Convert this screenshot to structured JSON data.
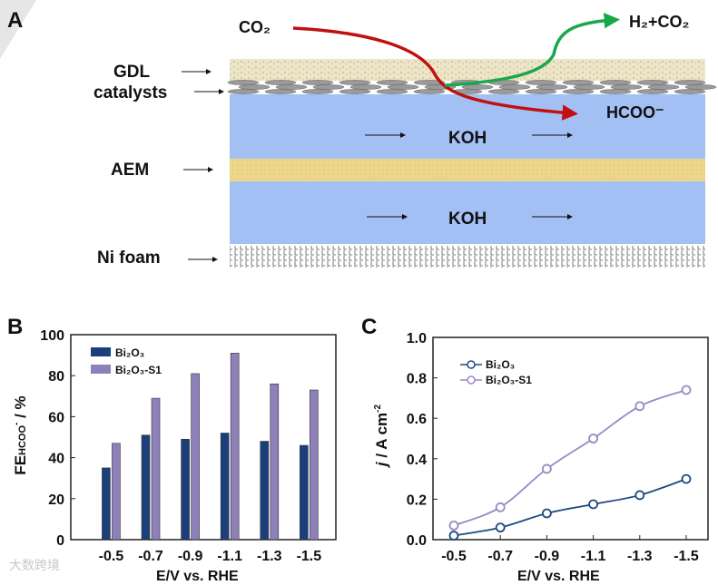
{
  "panel_a": {
    "letter": "A",
    "labels": {
      "gdl": "GDL",
      "catalysts": "catalysts",
      "aem": "AEM",
      "ni_foam": "Ni foam"
    },
    "koh_top": "KOH",
    "koh_bottom": "KOH",
    "co2_in": "CO₂",
    "h2_co2_out": "H₂+CO₂",
    "hcoo_out": "HCOO⁻",
    "colors": {
      "koh": "#a3c0f5",
      "aem": "#ecd68a",
      "gdl": "#e9e2c4",
      "co2_arrow": "#c01010",
      "h2_arrow": "#18a84a"
    }
  },
  "watermark": "大数跨境",
  "chart_data": [
    {
      "panel": "B",
      "type": "bar",
      "title": "",
      "xlabel": "E/V vs. RHE",
      "ylabel": "FE_HCOO⁻ / %",
      "ylabel_main": "FE",
      "ylabel_sub": "HCOO",
      "ylabel_sup": "-",
      "ylabel_tail": " / %",
      "categories": [
        "-0.5",
        "-0.7",
        "-0.9",
        "-1.1",
        "-1.3",
        "-1.5"
      ],
      "ylim": [
        0,
        100
      ],
      "yticks": [
        "0",
        "20",
        "40",
        "60",
        "80",
        "100"
      ],
      "legend_position": "top-left",
      "series": [
        {
          "name": "Bi₂O₃",
          "color": "#1a3f7a",
          "values": [
            35,
            51,
            49,
            52,
            48,
            46
          ]
        },
        {
          "name": "Bi₂O₃-S1",
          "color": "#8e80b8",
          "values": [
            47,
            69,
            81,
            91,
            76,
            73
          ]
        }
      ]
    },
    {
      "panel": "C",
      "type": "line",
      "title": "",
      "xlabel": "E/V vs. RHE",
      "ylabel_main": "j",
      "ylabel_tail": " / A cm",
      "ylabel_sup": "-2",
      "categories": [
        "-0.5",
        "-0.7",
        "-0.9",
        "-1.1",
        "-1.3",
        "-1.5"
      ],
      "ylim": [
        0,
        1.0
      ],
      "yticks": [
        "0.0",
        "0.2",
        "0.4",
        "0.6",
        "0.8",
        "1.0"
      ],
      "legend_position": "top-left",
      "series": [
        {
          "name": "Bi₂O₃",
          "color": "#1e4a80",
          "values": [
            0.02,
            0.06,
            0.13,
            0.175,
            0.22,
            0.3
          ]
        },
        {
          "name": "Bi₂O₃-S1",
          "color": "#9a88c4",
          "values": [
            0.07,
            0.16,
            0.35,
            0.5,
            0.66,
            0.74
          ]
        }
      ]
    }
  ]
}
